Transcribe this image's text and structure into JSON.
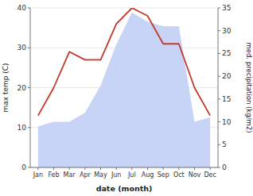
{
  "chart_data": {
    "type": "line",
    "categories": [
      "Jan",
      "Feb",
      "Mar",
      "Apr",
      "May",
      "Jun",
      "Jul",
      "Aug",
      "Sep",
      "Oct",
      "Nov",
      "Dec"
    ],
    "series": [
      {
        "type": "area",
        "axis": "y2",
        "color": "#c8d4f5",
        "values": [
          9,
          10,
          10,
          12,
          18,
          27,
          34,
          32,
          31,
          31,
          10,
          11
        ]
      },
      {
        "type": "line",
        "color": "#c0392b",
        "values": [
          13,
          20,
          29,
          27,
          27,
          36,
          40,
          38,
          31,
          31,
          20,
          13
        ]
      }
    ],
    "xlabel": "date (month)",
    "ylabel": "max temp (C)",
    "y2label": "med. precipitation (kg/m2)",
    "ylim": [
      0,
      40
    ],
    "yticks": [
      0,
      10,
      20,
      30,
      40
    ],
    "y2lim": [
      0,
      35
    ],
    "y2ticks": [
      0,
      5,
      10,
      15,
      20,
      25,
      30,
      35
    ],
    "grid": true
  }
}
